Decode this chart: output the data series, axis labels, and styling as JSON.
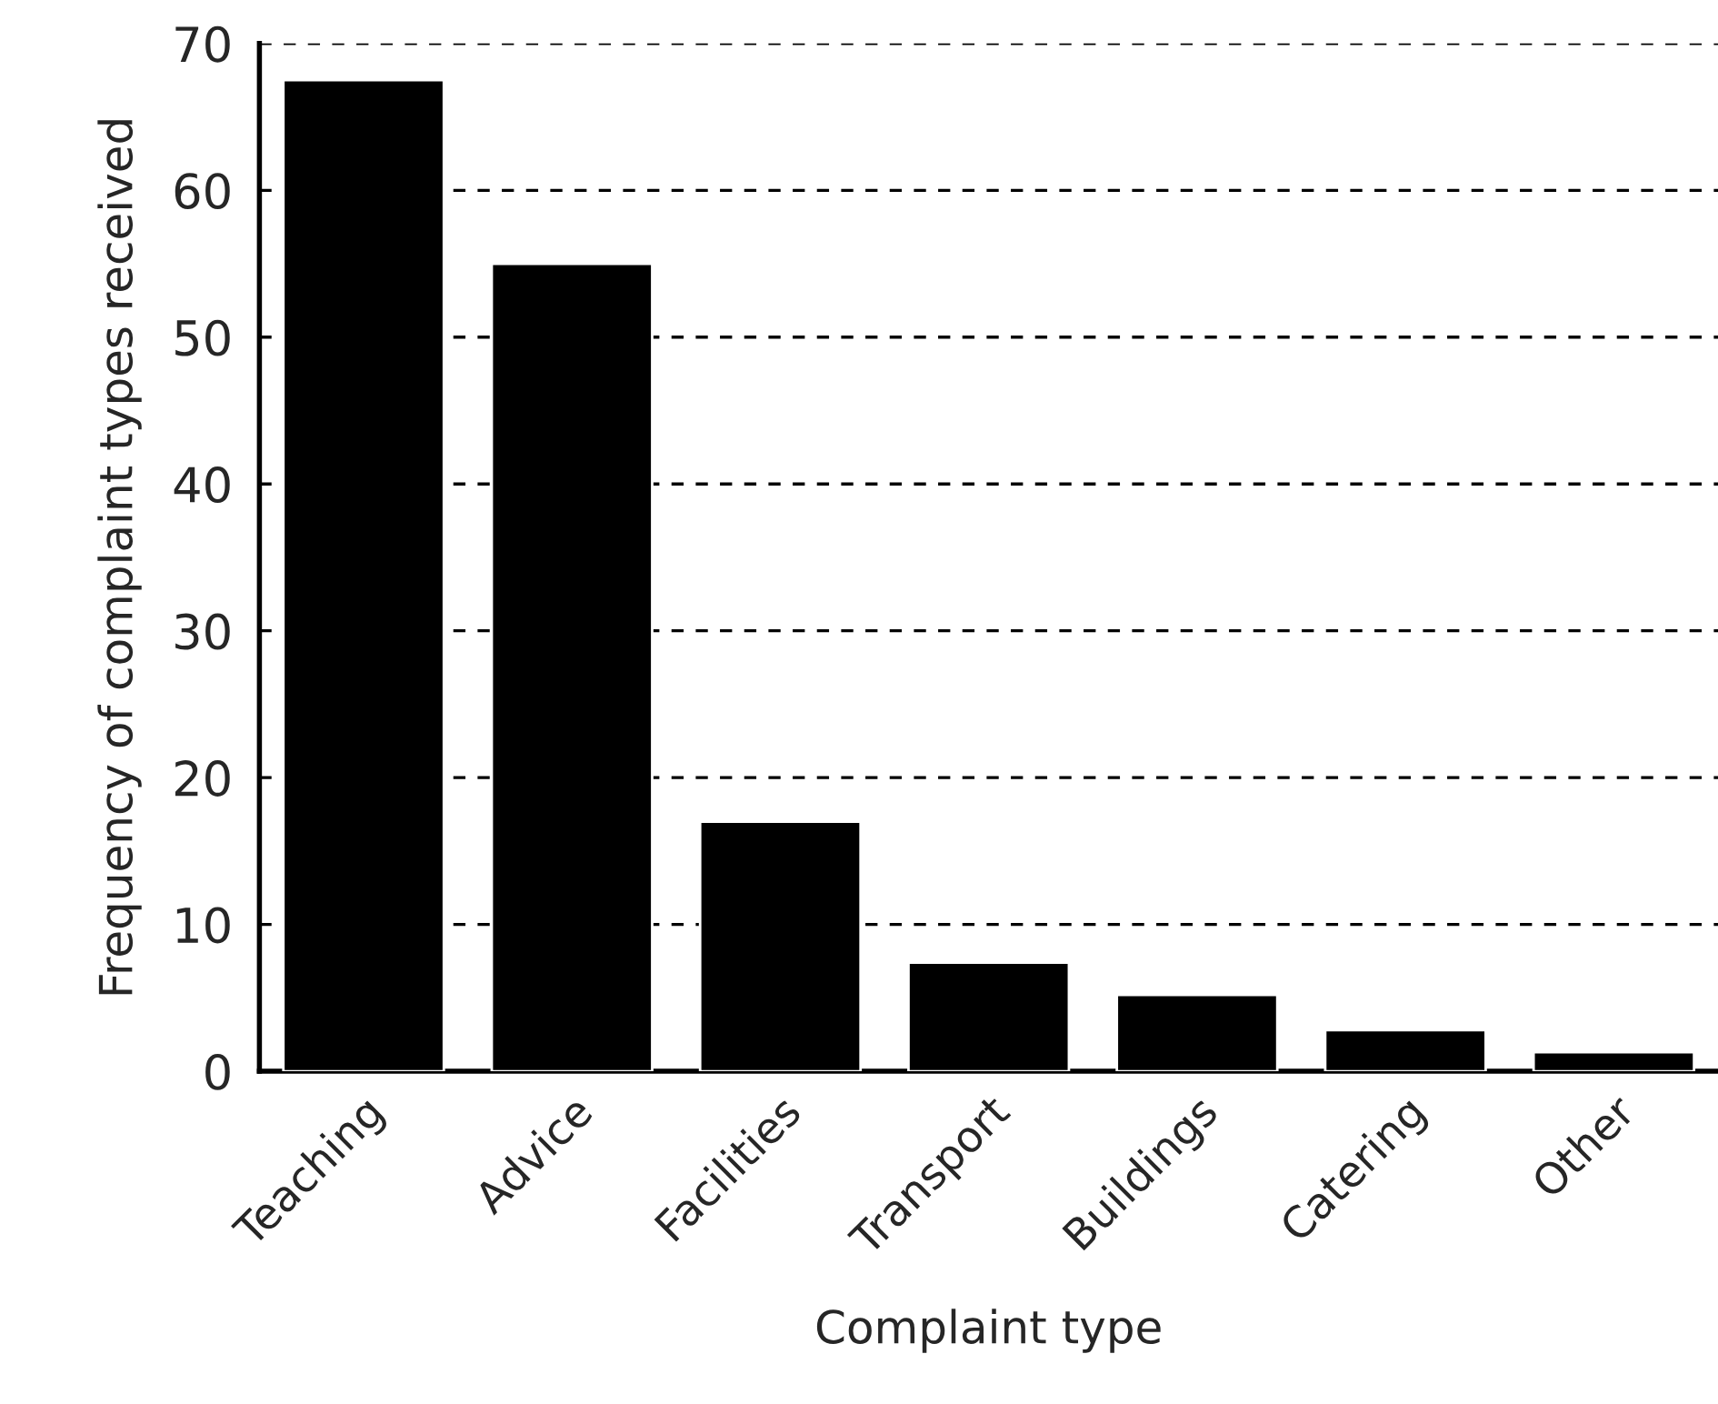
{
  "chart_data": {
    "type": "bar",
    "xlabel": "Complaint type",
    "ylabel": "Frequency of complaint types received",
    "categories": [
      "Teaching",
      "Advice",
      "Facilities",
      "Transport",
      "Buildings",
      "Catering",
      "Other"
    ],
    "values": [
      67.5,
      55,
      17,
      7.4,
      5.2,
      2.8,
      1.3
    ],
    "color": "#000000",
    "ylim": [
      0,
      70
    ],
    "yticks": [
      0,
      10,
      20,
      30,
      40,
      50,
      60,
      70
    ],
    "grid": "y"
  }
}
